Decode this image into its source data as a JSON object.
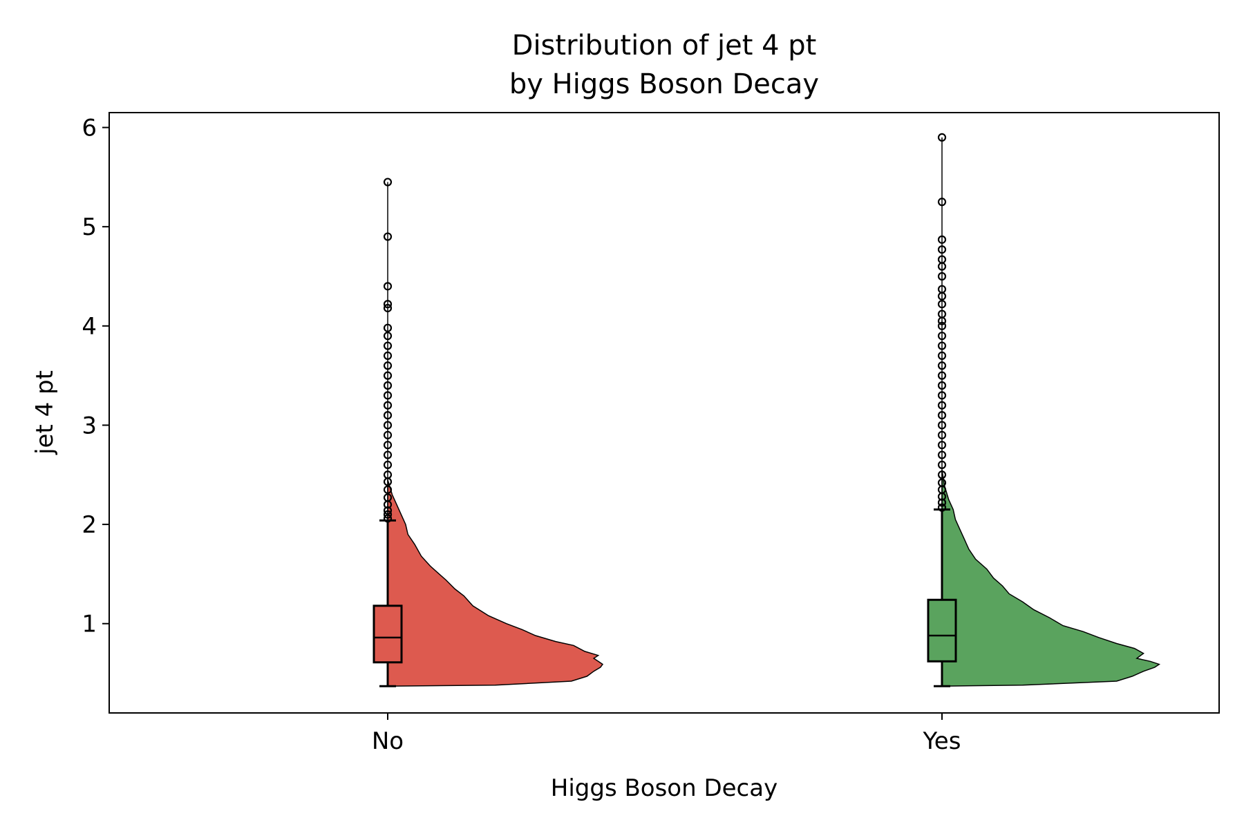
{
  "chart_data": {
    "type": "violin",
    "title_lines": [
      "Distribution of jet 4 pt",
      "by Higgs Boson Decay"
    ],
    "xlabel": "Higgs Boson Decay",
    "ylabel": "jet 4 pt",
    "categories": [
      "No",
      "Yes"
    ],
    "ylim": [
      0.1,
      6.15
    ],
    "yticks": [
      1,
      2,
      3,
      4,
      5,
      6
    ],
    "grid": false,
    "colors": {
      "No": "#dd5a4f",
      "Yes": "#5aa35e"
    },
    "series": [
      {
        "category": "No",
        "box": {
          "whisker_low": 0.37,
          "q1": 0.61,
          "median": 0.86,
          "q3": 1.18,
          "whisker_high": 2.04
        },
        "outliers": [
          2.06,
          2.1,
          2.14,
          2.2,
          2.27,
          2.35,
          2.43,
          2.5,
          2.6,
          2.7,
          2.8,
          2.9,
          3.0,
          3.1,
          3.2,
          3.3,
          3.4,
          3.5,
          3.6,
          3.7,
          3.8,
          3.9,
          3.98,
          4.18,
          4.22,
          4.4,
          4.9,
          5.45
        ],
        "density": [
          [
            0.37,
            0
          ],
          [
            0.38,
            0.48
          ],
          [
            0.42,
            0.82
          ],
          [
            0.47,
            0.89
          ],
          [
            0.52,
            0.92
          ],
          [
            0.56,
            0.95
          ],
          [
            0.59,
            0.96
          ],
          [
            0.62,
            0.94
          ],
          [
            0.65,
            0.92
          ],
          [
            0.68,
            0.94
          ],
          [
            0.72,
            0.88
          ],
          [
            0.78,
            0.83
          ],
          [
            0.82,
            0.75
          ],
          [
            0.88,
            0.66
          ],
          [
            0.94,
            0.6
          ],
          [
            1.0,
            0.53
          ],
          [
            1.08,
            0.45
          ],
          [
            1.18,
            0.38
          ],
          [
            1.28,
            0.34
          ],
          [
            1.35,
            0.3
          ],
          [
            1.44,
            0.26
          ],
          [
            1.5,
            0.23
          ],
          [
            1.58,
            0.19
          ],
          [
            1.68,
            0.15
          ],
          [
            1.8,
            0.12
          ],
          [
            1.9,
            0.09
          ],
          [
            2.0,
            0.08
          ],
          [
            2.1,
            0.06
          ],
          [
            2.2,
            0.04
          ],
          [
            2.3,
            0.02
          ],
          [
            2.45,
            0.0
          ]
        ]
      },
      {
        "category": "Yes",
        "box": {
          "whisker_low": 0.37,
          "q1": 0.62,
          "median": 0.88,
          "q3": 1.24,
          "whisker_high": 2.15
        },
        "outliers": [
          2.17,
          2.22,
          2.28,
          2.35,
          2.42,
          2.5,
          2.6,
          2.7,
          2.8,
          2.9,
          3.0,
          3.1,
          3.2,
          3.3,
          3.4,
          3.5,
          3.6,
          3.7,
          3.8,
          3.9,
          4.0,
          4.05,
          4.12,
          4.22,
          4.3,
          4.37,
          4.5,
          4.6,
          4.67,
          4.77,
          4.87,
          5.25,
          5.9
        ],
        "density": [
          [
            0.37,
            0
          ],
          [
            0.38,
            0.36
          ],
          [
            0.42,
            0.78
          ],
          [
            0.47,
            0.85
          ],
          [
            0.52,
            0.9
          ],
          [
            0.56,
            0.95
          ],
          [
            0.59,
            0.97
          ],
          [
            0.62,
            0.93
          ],
          [
            0.65,
            0.87
          ],
          [
            0.7,
            0.9
          ],
          [
            0.75,
            0.86
          ],
          [
            0.8,
            0.78
          ],
          [
            0.86,
            0.7
          ],
          [
            0.92,
            0.63
          ],
          [
            0.98,
            0.54
          ],
          [
            1.06,
            0.48
          ],
          [
            1.14,
            0.41
          ],
          [
            1.22,
            0.36
          ],
          [
            1.3,
            0.3
          ],
          [
            1.38,
            0.27
          ],
          [
            1.46,
            0.23
          ],
          [
            1.55,
            0.2
          ],
          [
            1.65,
            0.15
          ],
          [
            1.75,
            0.12
          ],
          [
            1.85,
            0.1
          ],
          [
            1.95,
            0.08
          ],
          [
            2.05,
            0.06
          ],
          [
            2.15,
            0.05
          ],
          [
            2.25,
            0.03
          ],
          [
            2.4,
            0.01
          ],
          [
            2.55,
            0.0
          ]
        ]
      }
    ]
  }
}
